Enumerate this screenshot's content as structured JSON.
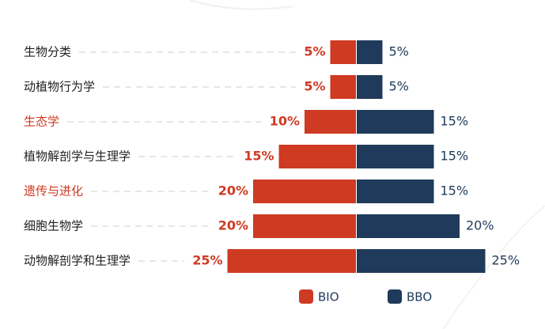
{
  "chart_data": {
    "type": "diverging-bar",
    "categories": [
      "生物分类",
      "动植物行为学",
      "生态学",
      "植物解剖学与生理学",
      "遗传与进化",
      "细胞生物学",
      "动物解剖学和生理学"
    ],
    "category_colors": [
      "#222222",
      "#222222",
      "#cf3a22",
      "#222222",
      "#cf3a22",
      "#222222",
      "#222222"
    ],
    "series": [
      {
        "name": "BIO",
        "color": "#cf3a22",
        "values": [
          5,
          5,
          10,
          15,
          20,
          20,
          25
        ],
        "value_labels": [
          "5%",
          "5%",
          "10%",
          "15%",
          "20%",
          "20%",
          "25%"
        ]
      },
      {
        "name": "BBO",
        "color": "#1f3a5a",
        "values": [
          5,
          5,
          15,
          15,
          15,
          20,
          25
        ],
        "value_labels": [
          "5%",
          "5%",
          "15%",
          "15%",
          "15%",
          "20%",
          "25%"
        ]
      }
    ]
  }
}
